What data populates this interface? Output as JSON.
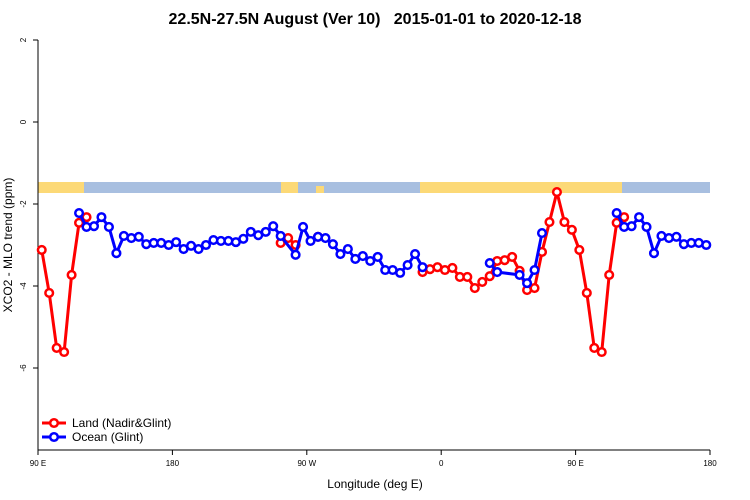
{
  "chart_data": {
    "type": "line",
    "title": "22.5N-27.5N August (Ver 10)   2015-01-01 to 2020-12-18",
    "x_label": "Longitude (deg E)",
    "y_label": "XCO2 - MLO trend (ppm)",
    "xlim": [
      90,
      540
    ],
    "ylim": [
      -8,
      2
    ],
    "xticks": [
      {
        "value": 90,
        "label": "90 E"
      },
      180,
      {
        "value": 270,
        "label": "90 W"
      },
      {
        "value": 360,
        "label": "0"
      },
      {
        "value": 450,
        "label": "90 E"
      },
      {
        "value": 540,
        "label": "180"
      }
    ],
    "yticks": [
      -6,
      -4,
      -2,
      0,
      2
    ],
    "legend": "bottom-left",
    "series": [
      {
        "name": "Land (Nadir&Glint)",
        "color": "#ff0000",
        "x": [
          92.5,
          97.5,
          102.5,
          107.5,
          112.5,
          117.5,
          122.5,
          187.5,
          252.5,
          257.5,
          262.5,
          270,
          277.5,
          310,
          347.5,
          352.5,
          357.5,
          362.5,
          367.5,
          372.5,
          377.5,
          382.5,
          387.5,
          392.5,
          397.5,
          402.5,
          407.5,
          412.5,
          417.5,
          422.5,
          427.5,
          432.5,
          437.5,
          442.5,
          447.5,
          452.5,
          457.5,
          462.5,
          467.5,
          472.5,
          477.5,
          482.5
        ],
        "values": [
          -3.12,
          -4.17,
          -5.51,
          -5.61,
          -3.73,
          -2.46,
          -2.32,
          null,
          -2.95,
          -2.83,
          -3.0,
          null,
          -2.8,
          null,
          -3.66,
          -3.59,
          -3.54,
          -3.61,
          -3.56,
          -3.78,
          -3.78,
          -4.05,
          -3.9,
          -3.76,
          -3.39,
          -3.37,
          -3.29,
          -3.63,
          -4.1,
          -4.05,
          -3.17,
          -2.44,
          -1.71,
          -2.44,
          -2.63,
          -3.12,
          -4.17,
          -5.51,
          -5.61,
          -3.73,
          -2.46,
          -2.32
        ]
      },
      {
        "name": "Ocean (Glint)",
        "color": "#0000ff",
        "x": [
          117.5,
          122.5,
          127.5,
          132.5,
          137.5,
          142.5,
          147.5,
          152.5,
          157.5,
          162.5,
          167.5,
          172.5,
          177.5,
          182.5,
          187.5,
          192.5,
          197.5,
          202.5,
          207.5,
          212.5,
          217.5,
          222.5,
          227.5,
          232.5,
          237.5,
          242.5,
          247.5,
          252.5,
          262.5,
          267.5,
          272.5,
          277.5,
          282.5,
          287.5,
          292.5,
          297.5,
          302.5,
          307.5,
          312.5,
          317.5,
          322.5,
          327.5,
          332.5,
          337.5,
          342.5,
          347.5,
          370,
          392.5,
          397.5,
          412.5,
          417.5,
          422.5,
          427.5,
          450,
          477.5,
          482.5,
          487.5,
          492.5,
          497.5,
          502.5,
          507.5,
          512.5,
          517.5,
          522.5,
          527.5,
          532.5,
          537.5
        ],
        "values": [
          -2.22,
          -2.56,
          -2.54,
          -2.32,
          -2.56,
          -3.2,
          -2.78,
          -2.83,
          -2.8,
          -2.98,
          -2.95,
          -2.95,
          -3.0,
          -2.93,
          -3.1,
          -3.02,
          -3.1,
          -3.0,
          -2.88,
          -2.9,
          -2.9,
          -2.93,
          -2.85,
          -2.68,
          -2.76,
          -2.68,
          -2.54,
          -2.78,
          -3.24,
          -2.56,
          -2.9,
          -2.8,
          -2.83,
          -2.98,
          -3.22,
          -3.1,
          -3.34,
          -3.27,
          -3.39,
          -3.29,
          -3.61,
          -3.61,
          -3.68,
          -3.49,
          -3.22,
          -3.54,
          null,
          -3.44,
          -3.66,
          -3.73,
          -3.93,
          -3.61,
          -2.71,
          null,
          -2.22,
          -2.56,
          -2.54,
          -2.32,
          -2.56,
          -3.2,
          -2.78,
          -2.83,
          -2.8,
          -2.98,
          -2.95,
          -2.95,
          -3.0
        ]
      }
    ]
  }
}
